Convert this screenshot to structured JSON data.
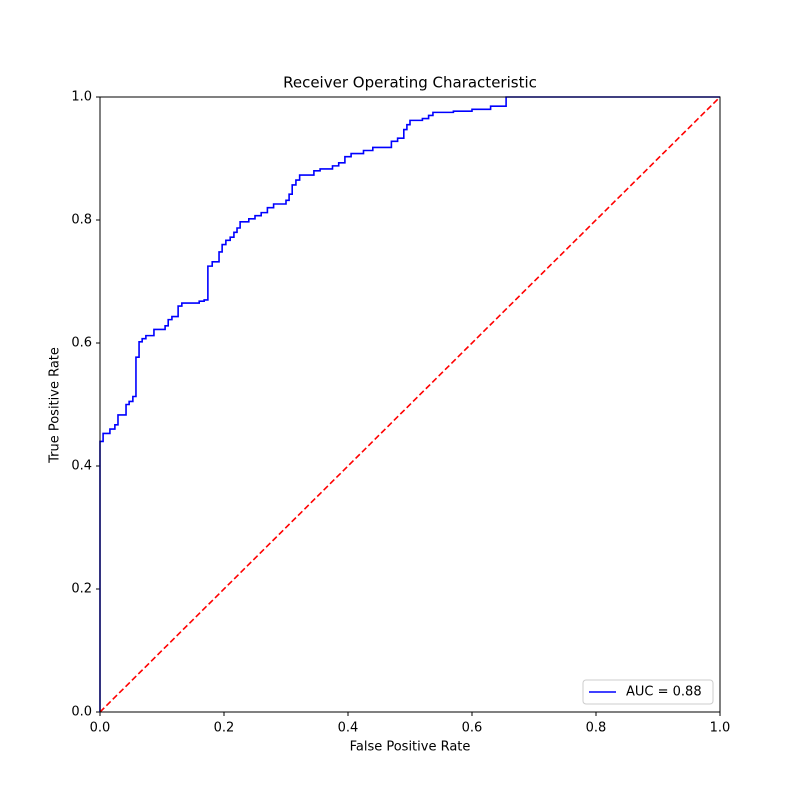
{
  "chart_data": {
    "type": "line",
    "title": "Receiver Operating Characteristic",
    "x_label": "False Positive Rate",
    "y_label": "True Positive Rate",
    "xlim": [
      0,
      1
    ],
    "ylim": [
      0,
      1
    ],
    "xticks": [
      {
        "value": 0,
        "label": "0.0"
      },
      0.2,
      0.4,
      0.6,
      0.8,
      {
        "value": 1,
        "label": "1.0"
      }
    ],
    "yticks": [
      {
        "value": 0,
        "label": "0.0"
      },
      0.2,
      0.4,
      0.6,
      0.8,
      {
        "value": 1,
        "label": "1.0"
      }
    ],
    "grid": false,
    "legend": "lower right",
    "series": [
      {
        "name": "AUC = 0.88",
        "color": "#0000ff",
        "linestyle": "solid",
        "x": [
          0,
          0,
          0.005,
          0.005,
          0.016,
          0.016,
          0.024,
          0.024,
          0.029,
          0.029,
          0.042,
          0.042,
          0.047,
          0.047,
          0.053,
          0.053,
          0.058,
          0.058,
          0.063,
          0.063,
          0.068,
          0.068,
          0.074,
          0.074,
          0.087,
          0.087,
          0.105,
          0.105,
          0.11,
          0.11,
          0.116,
          0.116,
          0.126,
          0.126,
          0.132,
          0.132,
          0.16,
          0.16,
          0.168,
          0.168,
          0.174,
          0.174,
          0.181,
          0.181,
          0.192,
          0.192,
          0.197,
          0.197,
          0.203,
          0.203,
          0.21,
          0.21,
          0.216,
          0.216,
          0.221,
          0.221,
          0.226,
          0.226,
          0.24,
          0.24,
          0.25,
          0.25,
          0.26,
          0.26,
          0.27,
          0.27,
          0.28,
          0.28,
          0.3,
          0.3,
          0.305,
          0.305,
          0.31,
          0.31,
          0.316,
          0.316,
          0.322,
          0.322,
          0.345,
          0.345,
          0.355,
          0.355,
          0.375,
          0.375,
          0.385,
          0.385,
          0.395,
          0.395,
          0.405,
          0.405,
          0.425,
          0.425,
          0.44,
          0.44,
          0.47,
          0.47,
          0.48,
          0.48,
          0.49,
          0.49,
          0.495,
          0.495,
          0.5,
          0.5,
          0.52,
          0.52,
          0.53,
          0.53,
          0.537,
          0.537,
          0.57,
          0.57,
          0.6,
          0.6,
          0.63,
          0.63,
          0.655,
          0.655,
          1
        ],
        "values": [
          0,
          0.44,
          0.44,
          0.453,
          0.453,
          0.46,
          0.46,
          0.467,
          0.467,
          0.483,
          0.483,
          0.5,
          0.5,
          0.505,
          0.505,
          0.513,
          0.513,
          0.577,
          0.577,
          0.602,
          0.602,
          0.607,
          0.607,
          0.612,
          0.612,
          0.622,
          0.622,
          0.628,
          0.628,
          0.638,
          0.638,
          0.643,
          0.643,
          0.66,
          0.66,
          0.665,
          0.665,
          0.668,
          0.668,
          0.67,
          0.67,
          0.725,
          0.725,
          0.732,
          0.732,
          0.748,
          0.748,
          0.76,
          0.76,
          0.767,
          0.767,
          0.772,
          0.772,
          0.78,
          0.78,
          0.787,
          0.787,
          0.797,
          0.797,
          0.802,
          0.802,
          0.807,
          0.807,
          0.812,
          0.812,
          0.82,
          0.82,
          0.826,
          0.826,
          0.832,
          0.832,
          0.842,
          0.842,
          0.857,
          0.857,
          0.865,
          0.865,
          0.873,
          0.873,
          0.88,
          0.88,
          0.883,
          0.883,
          0.888,
          0.888,
          0.893,
          0.893,
          0.903,
          0.903,
          0.908,
          0.908,
          0.913,
          0.913,
          0.918,
          0.918,
          0.928,
          0.928,
          0.933,
          0.933,
          0.947,
          0.947,
          0.955,
          0.955,
          0.962,
          0.962,
          0.965,
          0.965,
          0.97,
          0.97,
          0.975,
          0.975,
          0.977,
          0.977,
          0.98,
          0.98,
          0.985,
          0.985,
          1,
          1
        ]
      },
      {
        "color": "#ff0000",
        "linestyle": "dashed",
        "x": [
          0,
          1
        ],
        "values": [
          0,
          1
        ]
      }
    ]
  }
}
